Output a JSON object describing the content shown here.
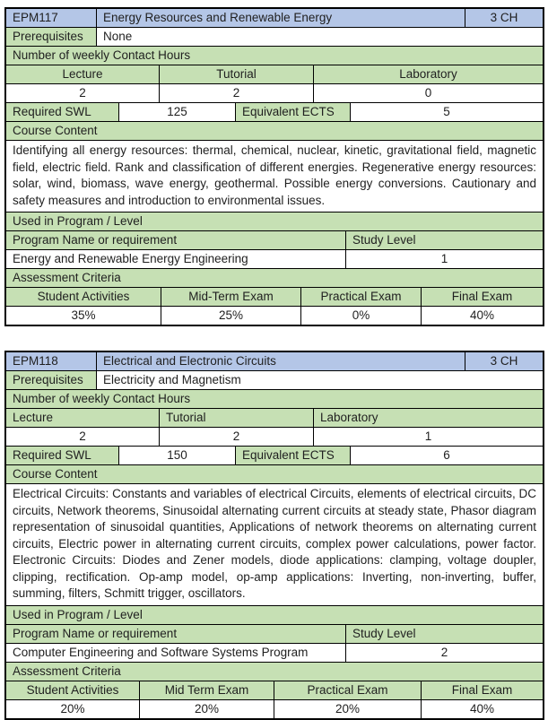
{
  "colors": {
    "header_blue": "#B4C6E7",
    "label_green": "#C6E0B4",
    "border": "#000000",
    "text": "#1f1f1f"
  },
  "courses": [
    {
      "code": "EPM117",
      "title": "Energy Resources and Renewable Energy",
      "credit_hours": "3 CH",
      "prerequisites_label": "Prerequisites",
      "prerequisites": "None",
      "contact_hours_label": "Number of weekly Contact Hours",
      "lecture_label": "Lecture",
      "tutorial_label": "Tutorial",
      "laboratory_label": "Laboratory",
      "lecture_hours": "2",
      "tutorial_hours": "2",
      "laboratory_hours": "0",
      "required_swl_label": "Required SWL",
      "required_swl": "125",
      "equivalent_ects_label": "Equivalent ECTS",
      "equivalent_ects": "5",
      "course_content_label": "Course Content",
      "course_content": "Identifying all energy resources: thermal, chemical, nuclear, kinetic, gravitational field, magnetic field, electric field. Rank and classification of different energies. Regenerative energy resources: solar, wind, biomass, wave energy, geothermal. Possible energy conversions. Cautionary and safety measures and introduction to environmental issues.",
      "used_in_label": "Used in Program / Level",
      "program_name_label": "Program Name or requirement",
      "study_level_label": "Study Level",
      "program_name": "Energy and Renewable Energy Engineering",
      "study_level": "1",
      "assessment_label": "Assessment Criteria",
      "assessment_headers": [
        "Student Activities",
        "Mid-Term Exam",
        "Practical Exam",
        "Final Exam"
      ],
      "assessment_values": [
        "35%",
        "25%",
        "0%",
        "40%"
      ]
    },
    {
      "code": "EPM118",
      "title": "Electrical and Electronic Circuits",
      "credit_hours": "3 CH",
      "prerequisites_label": "Prerequisites",
      "prerequisites": "Electricity and Magnetism",
      "contact_hours_label": "Number of weekly Contact Hours",
      "lecture_label": "Lecture",
      "tutorial_label": "Tutorial",
      "laboratory_label": "Laboratory",
      "lecture_hours": "2",
      "tutorial_hours": "2",
      "laboratory_hours": "1",
      "required_swl_label": "Required SWL",
      "required_swl": "150",
      "equivalent_ects_label": "Equivalent ECTS",
      "equivalent_ects": "6",
      "course_content_label": "Course Content",
      "course_content": "Electrical Circuits: Constants and variables of electrical Circuits, elements of electrical circuits, DC circuits, Network theorems, Sinusoidal alternating current circuits at steady state, Phasor diagram representation of sinusoidal quantities, Applications of network theorems on alternating current circuits, Electric power in alternating current circuits, complex power calculations, power factor. Electronic Circuits: Diodes and Zener models, diode applications: clamping, voltage doupler, clipping, rectification.  Op-amp model, op-amp applications: Inverting, non-inverting, buffer, summing, filters, Schmitt trigger, oscillators.",
      "used_in_label": "Used in Program / Level",
      "program_name_label": "Program Name or requirement",
      "study_level_label": "Study Level",
      "program_name": "Computer Engineering and Software Systems Program",
      "study_level": "2",
      "assessment_label": "Assessment Criteria",
      "assessment_headers": [
        "Student Activities",
        "Mid Term Exam",
        "Practical Exam",
        "Final Exam"
      ],
      "assessment_values": [
        "20%",
        "20%",
        "20%",
        "40%"
      ]
    }
  ]
}
